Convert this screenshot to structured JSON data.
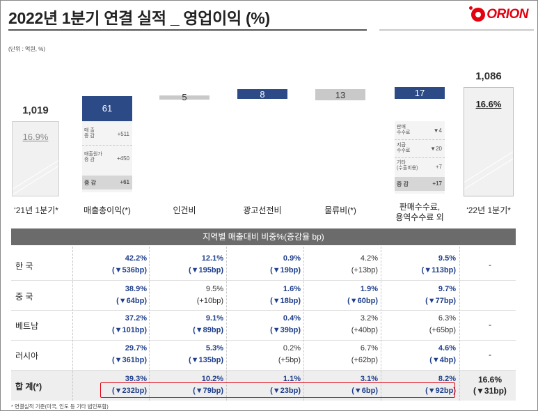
{
  "header": {
    "title": "2022년 1분기 연결 실적 _ 영업이익 (%)",
    "brand": "ORION",
    "unit": "(단위 : 억원, %)"
  },
  "waterfall": {
    "start": {
      "value": "1,019",
      "pct": "16.9%",
      "label": "‘21년 1분기*"
    },
    "end": {
      "value": "1,086",
      "pct": "16.6%",
      "label": "‘22년 1분기*"
    },
    "steps": [
      {
        "name": "매출총이익(*)",
        "value": "61",
        "direction": "up",
        "color": "#2c4a86",
        "detail": [
          {
            "label": "매 출\n증 감",
            "value": "+511"
          },
          {
            "label": "매출원가\n증 감",
            "value": "+450"
          }
        ],
        "sum": {
          "label": "증 감",
          "value": "+61"
        }
      },
      {
        "name": "인건비",
        "value": "5",
        "direction": "down",
        "color": "#c9c9c9"
      },
      {
        "name": "광고선전비",
        "value": "8",
        "direction": "up",
        "color": "#2c4a86"
      },
      {
        "name": "물류비(*)",
        "value": "13",
        "direction": "down",
        "color": "#c9c9c9"
      },
      {
        "name": "판매수수료,\n용역수수료 외",
        "value": "17",
        "direction": "up",
        "color": "#2c4a86",
        "detail": [
          {
            "label": "판매\n수수료",
            "value": "▼4"
          },
          {
            "label": "지급\n수수료",
            "value": "▼20"
          },
          {
            "label": "기타\n(수출비용)",
            "value": "+7"
          }
        ],
        "sum": {
          "label": "증 감",
          "value": "+17"
        }
      }
    ]
  },
  "table": {
    "heading": "지역별 매출대비 비중%(증감율 bp)",
    "rows": [
      {
        "label": "한 국",
        "cells": [
          {
            "v": "42.2%",
            "d": "(▼536bp)",
            "blue": true
          },
          {
            "v": "12.1%",
            "d": "(▼195bp)",
            "blue": true
          },
          {
            "v": "0.9%",
            "d": "(▼19bp)",
            "blue": true
          },
          {
            "v": "4.2%",
            "d": "(+13bp)",
            "blue": false
          },
          {
            "v": "9.5%",
            "d": "(▼113bp)",
            "blue": true
          }
        ],
        "last": "-"
      },
      {
        "label": "중 국",
        "cells": [
          {
            "v": "38.9%",
            "d": "(▼64bp)",
            "blue": true
          },
          {
            "v": "9.5%",
            "d": "(+10bp)",
            "blue": false
          },
          {
            "v": "1.6%",
            "d": "(▼18bp)",
            "blue": true
          },
          {
            "v": "1.9%",
            "d": "(▼60bp)",
            "blue": true
          },
          {
            "v": "9.7%",
            "d": "(▼77bp)",
            "blue": true
          }
        ],
        "last": ""
      },
      {
        "label": "베트남",
        "cells": [
          {
            "v": "37.2%",
            "d": "(▼101bp)",
            "blue": true
          },
          {
            "v": "9.1%",
            "d": "(▼89bp)",
            "blue": true
          },
          {
            "v": "0.4%",
            "d": "(▼39bp)",
            "blue": true
          },
          {
            "v": "3.2%",
            "d": "(+40bp)",
            "blue": false
          },
          {
            "v": "6.3%",
            "d": "(+65bp)",
            "blue": false
          }
        ],
        "last": "-"
      },
      {
        "label": "러시아",
        "cells": [
          {
            "v": "29.7%",
            "d": "(▼361bp)",
            "blue": true
          },
          {
            "v": "5.3%",
            "d": "(▼135bp)",
            "blue": true
          },
          {
            "v": "0.2%",
            "d": "(+5bp)",
            "blue": false
          },
          {
            "v": "6.7%",
            "d": "(+62bp)",
            "blue": false
          },
          {
            "v": "4.6%",
            "d": "(▼4bp)",
            "blue": true
          }
        ],
        "last": "-"
      },
      {
        "label": "합 계(*)",
        "cells": [
          {
            "v": "39.3%",
            "d": "(▼232bp)",
            "blue": true
          },
          {
            "v": "10.2%",
            "d": "(▼79bp)",
            "blue": true
          },
          {
            "v": "1.1%",
            "d": "(▼23bp)",
            "blue": true
          },
          {
            "v": "3.1%",
            "d": "(▼6bp)",
            "blue": true
          },
          {
            "v": "8.2%",
            "d": "(▼92bp)",
            "blue": true
          }
        ],
        "last_v": "16.6%",
        "last_d": "(▼31bp)"
      }
    ]
  },
  "footnote": "* 연결실적 기준(미국, 인도 등 기타 법인포함)",
  "colors": {
    "accent": "#e3000f",
    "blue": "#2c4a86",
    "gray": "#c9c9c9",
    "header": "#6b6b6b"
  }
}
